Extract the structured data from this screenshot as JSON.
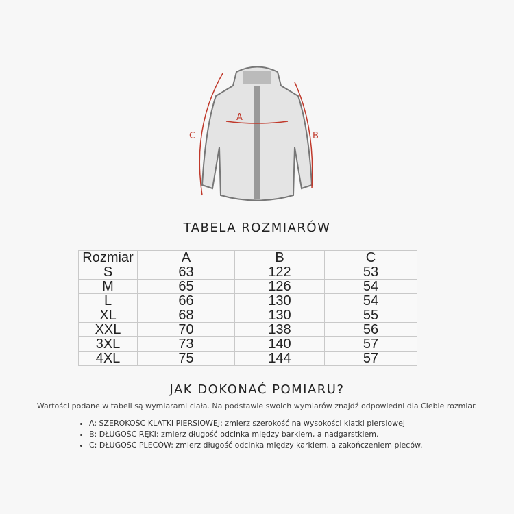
{
  "illustration": {
    "labels": [
      "A",
      "B",
      "C"
    ],
    "arrow_color": "#c0392b"
  },
  "heading_table": "TABELA ROZMIARÓW",
  "table": {
    "headers": [
      "Rozmiar",
      "A",
      "B",
      "C"
    ],
    "rows": [
      [
        "S",
        "63",
        "122",
        "53"
      ],
      [
        "M",
        "65",
        "126",
        "54"
      ],
      [
        "L",
        "66",
        "130",
        "54"
      ],
      [
        "XL",
        "68",
        "130",
        "55"
      ],
      [
        "XXL",
        "70",
        "138",
        "56"
      ],
      [
        "3XL",
        "73",
        "140",
        "57"
      ],
      [
        "4XL",
        "75",
        "144",
        "57"
      ]
    ]
  },
  "heading_howto": "JAK DOKONAĆ POMIARU?",
  "description": "Wartości podane w tabeli są wymiarami ciała. Na podstawie swoich wymiarów znajdź odpowiedni dla Ciebie rozmiar.",
  "instructions": [
    "A: SZEROKOŚĆ KLATKI PIERSIOWEJ: zmierz szerokość na wysokości klatki piersiowej",
    "B: DŁUGOŚĆ RĘKI: zmierz długość odcinka między barkiem, a nadgarstkiem.",
    "C: DŁUGOŚĆ PLECÓW: zmierz długość odcinka między karkiem, a zakończeniem pleców."
  ]
}
